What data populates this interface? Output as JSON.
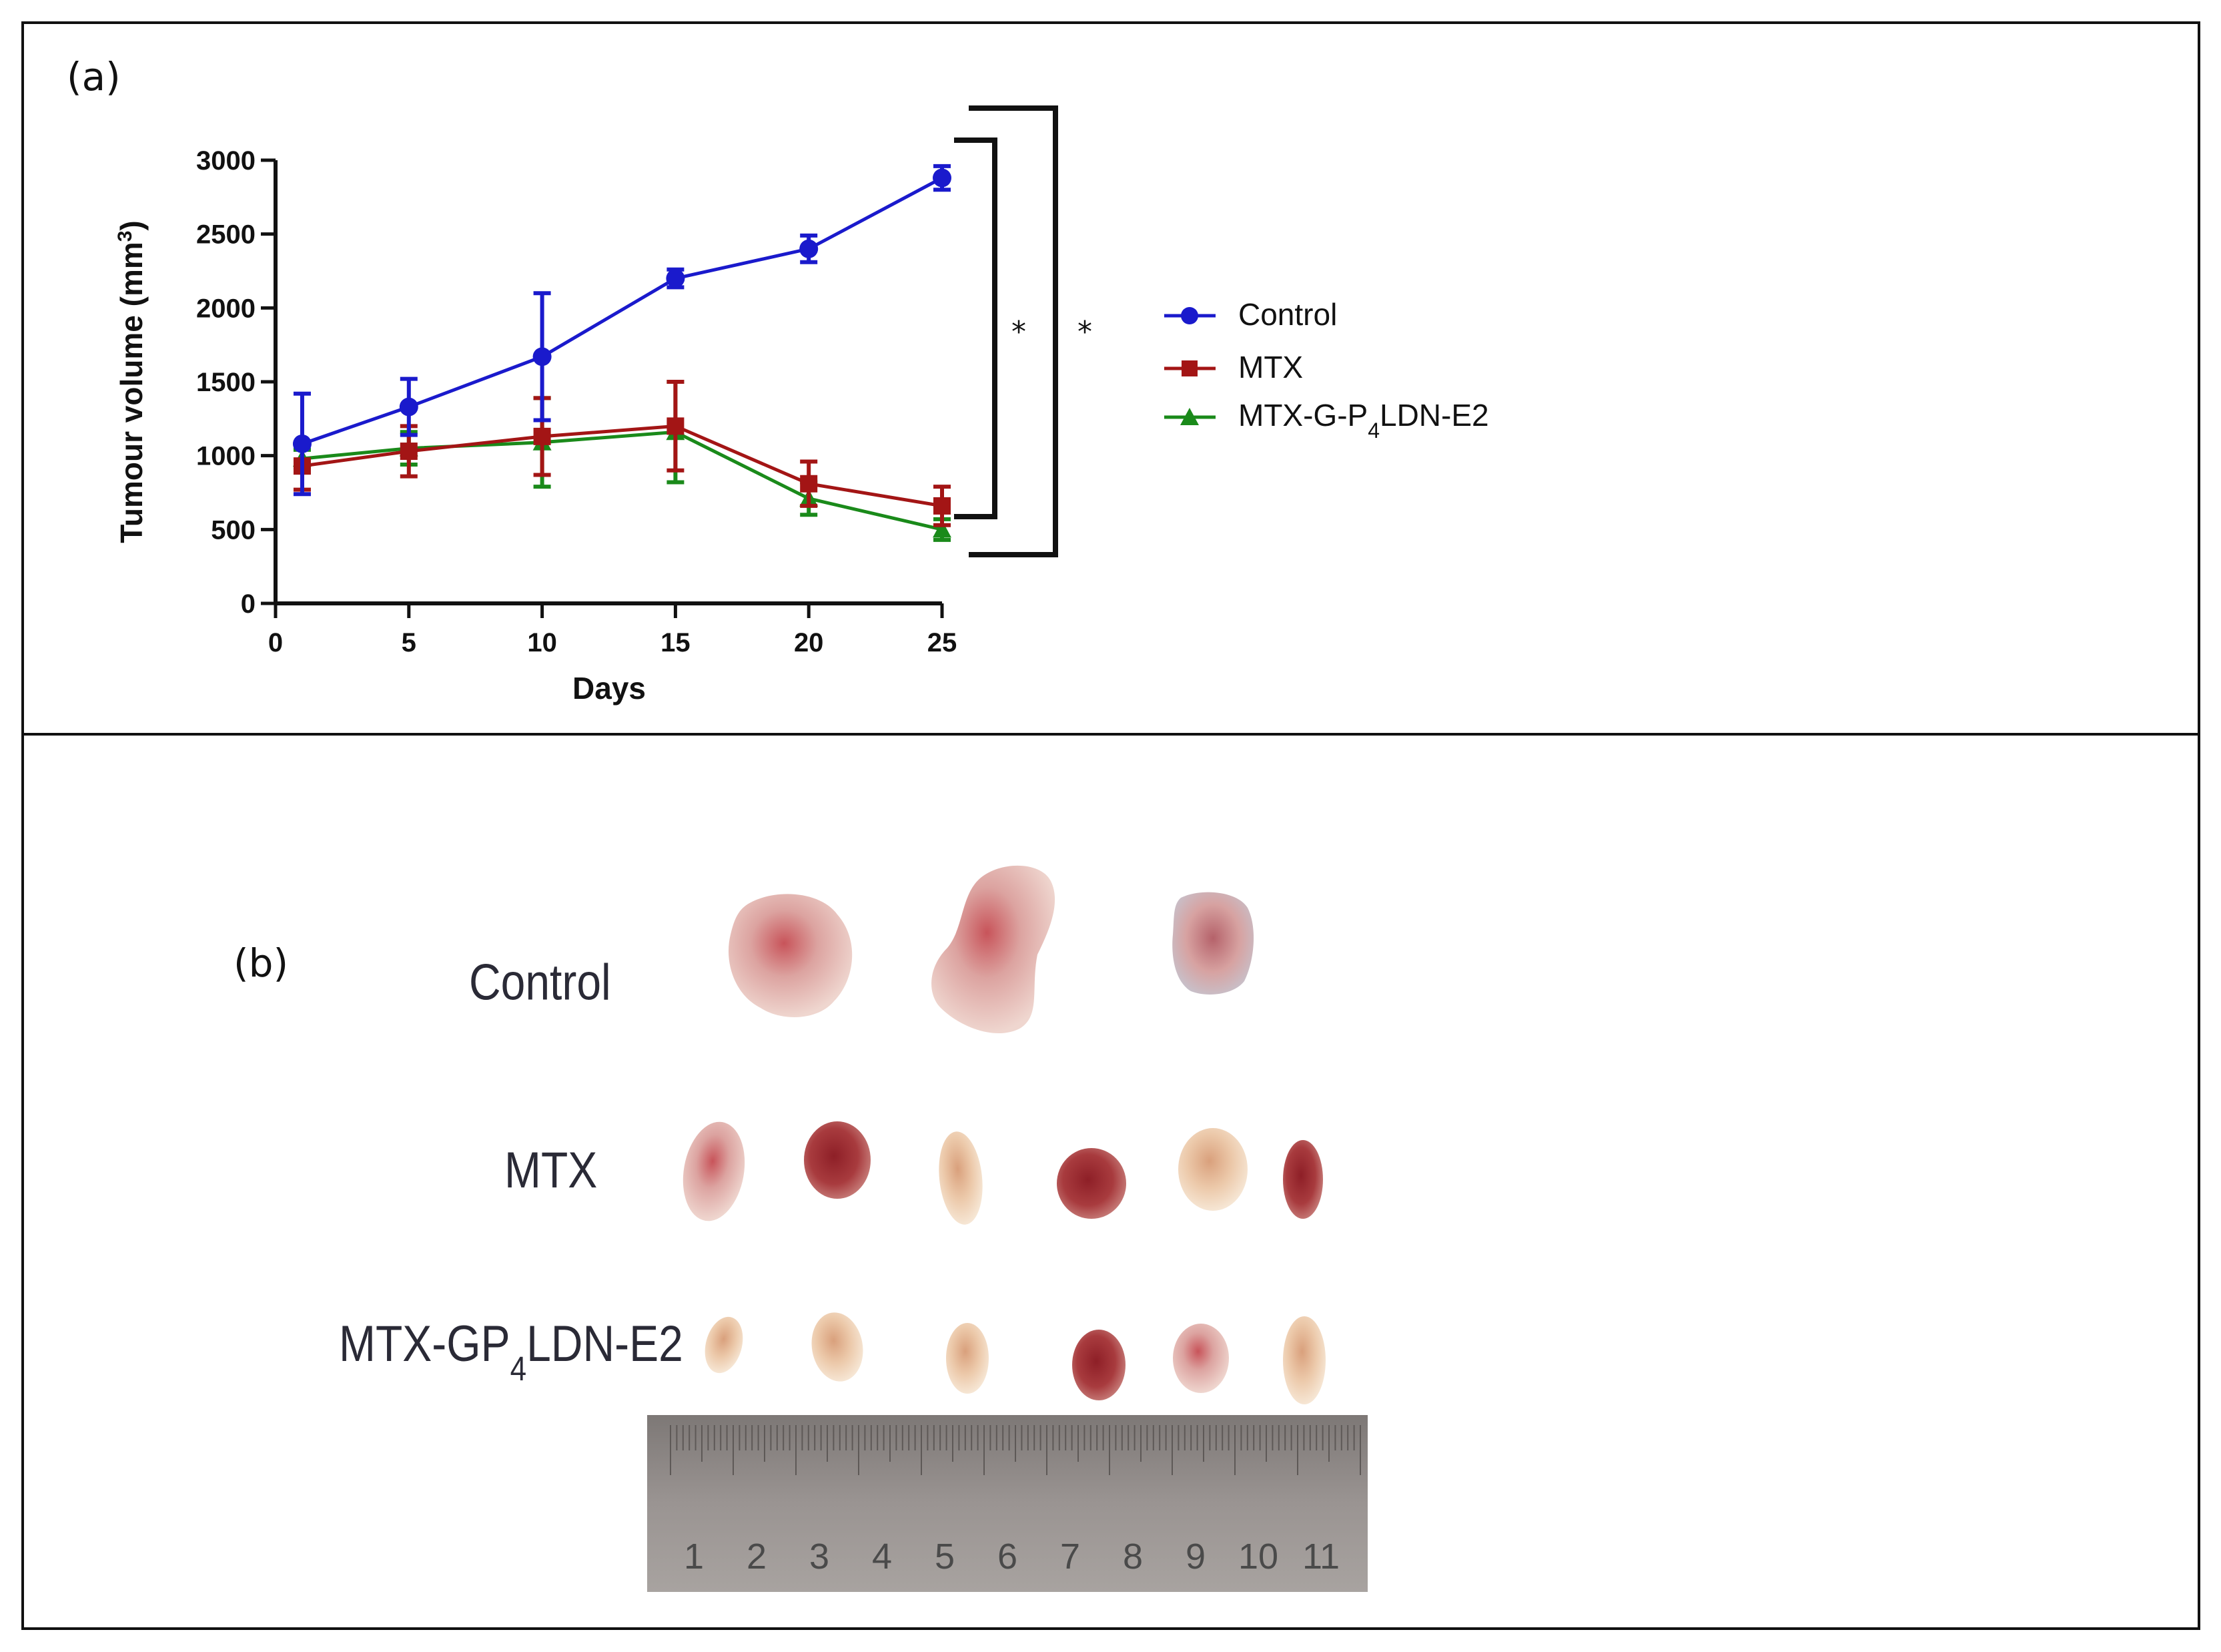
{
  "panel_a": {
    "label": "(a)"
  },
  "panel_b": {
    "label": "(b)",
    "groups": [
      {
        "label": "Control",
        "count": 3
      },
      {
        "label": "MTX",
        "count": 6
      },
      {
        "label_main": "MTX-GP",
        "label_sub": "4",
        "label_tail": "LDN-E2",
        "count": 6
      }
    ],
    "ruler_numbers": [
      "1",
      "2",
      "3",
      "4",
      "5",
      "6",
      "7",
      "8",
      "9",
      "10",
      "11"
    ],
    "colors": {
      "tumour_pink": "#d9a5a0",
      "tumour_red": "#a4363a",
      "tumour_pale": "#e9c7a6",
      "ruler": "#8c8785"
    }
  },
  "chart_data": {
    "type": "line",
    "title": "",
    "xlabel": "Days",
    "ylabel_main": "Tumour volume (mm",
    "ylabel_sup": "3",
    "ylabel_tail": ")",
    "xlim": [
      0,
      25
    ],
    "ylim": [
      0,
      3000
    ],
    "xticks": [
      0,
      5,
      10,
      15,
      20,
      25
    ],
    "yticks": [
      0,
      500,
      1000,
      1500,
      2000,
      2500,
      3000
    ],
    "x": [
      1,
      5,
      10,
      15,
      20,
      25
    ],
    "series": [
      {
        "name": "Control",
        "marker": "circle",
        "color": "#1a1acc",
        "values": [
          1080,
          1330,
          1670,
          2200,
          2400,
          2880
        ],
        "errors": [
          340,
          190,
          430,
          60,
          90,
          80
        ]
      },
      {
        "name": "MTX",
        "marker": "square",
        "color": "#a31515",
        "values": [
          930,
          1030,
          1130,
          1200,
          810,
          660
        ],
        "errors": [
          160,
          170,
          260,
          300,
          150,
          130
        ]
      },
      {
        "name_main": "MTX-G-P",
        "name_sub": "4",
        "name_tail": "LDN-E2",
        "marker": "triangle",
        "color": "#1a8a1a",
        "values": [
          980,
          1050,
          1090,
          1160,
          710,
          500
        ],
        "errors": [
          60,
          110,
          300,
          340,
          110,
          70
        ]
      }
    ],
    "legend_position": "right",
    "significance": [
      {
        "label": "*",
        "between": [
          "Control",
          "MTX"
        ]
      },
      {
        "label": "*",
        "between": [
          "Control",
          "MTX-G-P4LDN-E2"
        ]
      }
    ]
  }
}
